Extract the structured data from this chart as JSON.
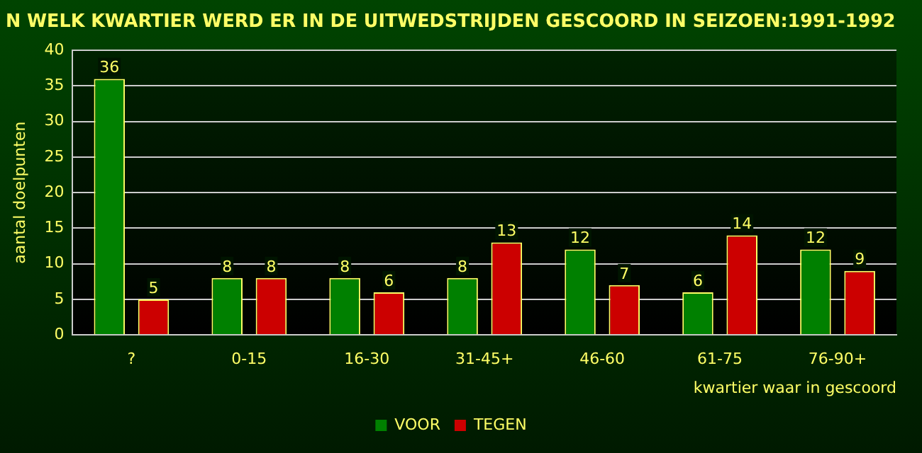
{
  "chart_data": {
    "type": "bar",
    "title": "N WELK KWARTIER WERD ER IN DE UITWEDSTRIJDEN GESCOORD IN SEIZOEN:1991-1992",
    "xlabel": "kwartier waar in gescoord",
    "ylabel": "aantal doelpunten",
    "categories": [
      "?",
      "0-15",
      "16-30",
      "31-45+",
      "46-60",
      "61-75",
      "76-90+"
    ],
    "series": [
      {
        "name": "VOOR",
        "color": "#008000",
        "values": [
          36,
          8,
          8,
          8,
          12,
          6,
          12
        ]
      },
      {
        "name": "TEGEN",
        "color": "#cc0000",
        "values": [
          5,
          8,
          6,
          13,
          7,
          14,
          9
        ]
      }
    ],
    "ylim": [
      0,
      40
    ],
    "yticks": [
      0,
      5,
      10,
      15,
      20,
      25,
      30,
      35,
      40
    ],
    "grid": "y",
    "legend": "bottom",
    "data_labels": true
  }
}
